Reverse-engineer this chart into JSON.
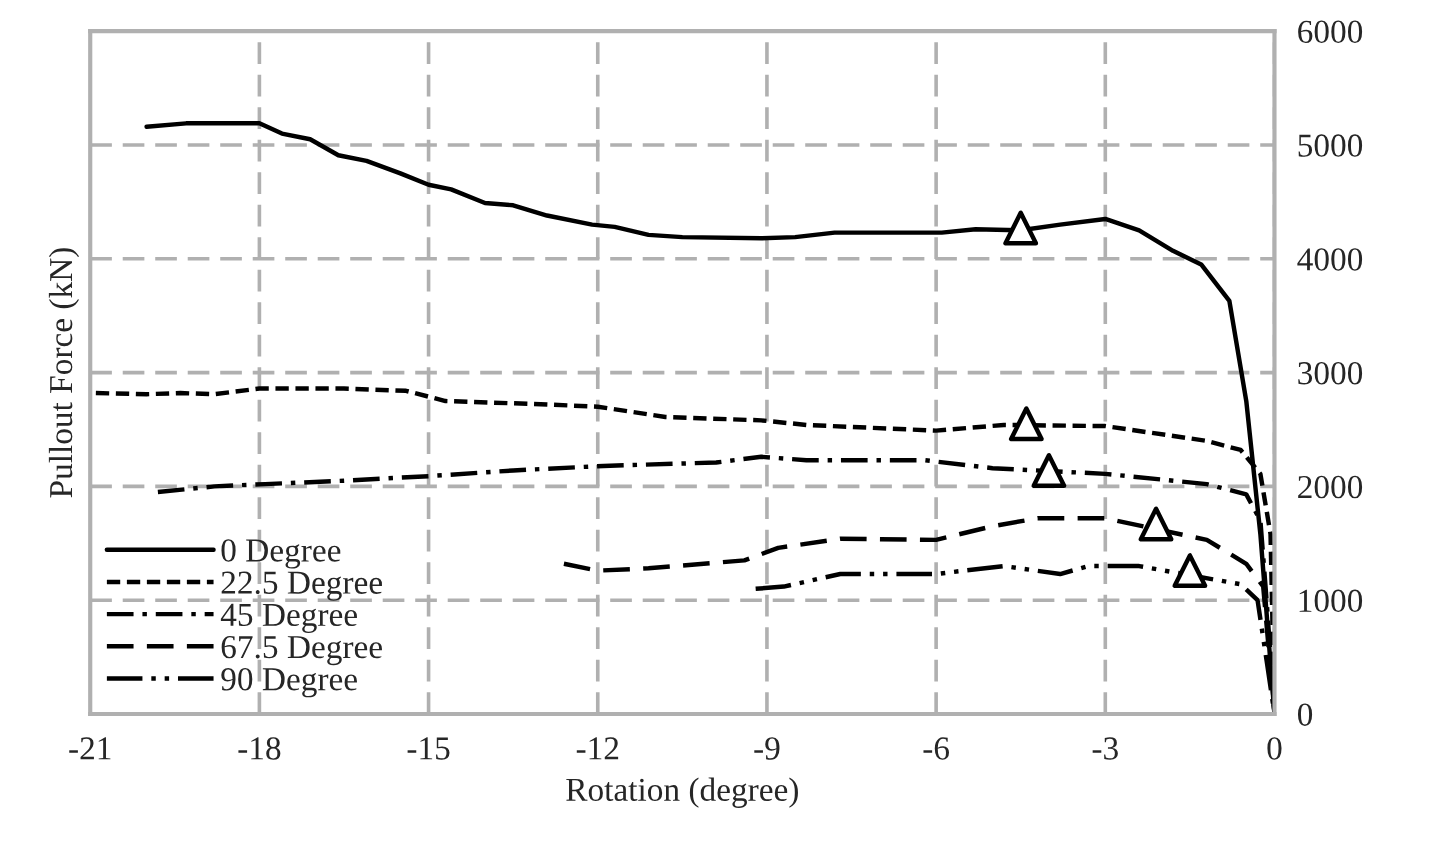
{
  "chart_data": {
    "type": "line",
    "xlabel": "Rotation (degree)",
    "ylabel": "Pullout Force (kN)",
    "xlim": [
      -21,
      0
    ],
    "xticks": [
      -21,
      -18,
      -15,
      -12,
      -9,
      -6,
      -3,
      0
    ],
    "ylim": [
      0,
      6000
    ],
    "yticks": [
      0,
      1000,
      2000,
      3000,
      4000,
      5000,
      6000
    ],
    "grid": true,
    "legend": "bottom left",
    "series": [
      {
        "name": "0 Degree",
        "color": "#000000",
        "line_style": "solid",
        "x": [
          -20.0,
          -19.3,
          -18.0,
          -17.6,
          -17.1,
          -16.6,
          -16.1,
          -15.5,
          -15.0,
          -14.6,
          -14.0,
          -13.5,
          -12.9,
          -12.1,
          -11.7,
          -11.1,
          -10.5,
          -9.1,
          -8.5,
          -7.8,
          -5.9,
          -5.3,
          -4.5,
          -3.8,
          -3.0,
          -2.4,
          -1.8,
          -1.3,
          -0.8,
          -0.5,
          -0.25,
          0
        ],
        "values": [
          5160,
          5190,
          5190,
          5100,
          5050,
          4910,
          4860,
          4750,
          4650,
          4610,
          4490,
          4470,
          4380,
          4300,
          4280,
          4210,
          4190,
          4180,
          4190,
          4230,
          4230,
          4260,
          4250,
          4300,
          4350,
          4250,
          4070,
          3950,
          3630,
          2750,
          1580,
          0
        ]
      },
      {
        "name": "22.5 Degree",
        "color": "#000000",
        "line_style": "dotted",
        "x": [
          -20.9,
          -20.0,
          -19.4,
          -18.8,
          -18.0,
          -16.5,
          -15.4,
          -14.7,
          -12.9,
          -12.0,
          -10.8,
          -9.1,
          -8.3,
          -6.0,
          -4.8,
          -3.0,
          -1.2,
          -0.6,
          -0.25,
          -0.07,
          0
        ],
        "values": [
          2820,
          2810,
          2820,
          2810,
          2860,
          2860,
          2840,
          2750,
          2720,
          2700,
          2610,
          2580,
          2540,
          2490,
          2540,
          2530,
          2400,
          2320,
          2110,
          1580,
          0
        ]
      },
      {
        "name": "45 Degree",
        "color": "#000000",
        "line_style": "dashdot",
        "x": [
          -19.8,
          -18.8,
          -17.9,
          -16.5,
          -15.0,
          -13.5,
          -11.9,
          -9.9,
          -9.1,
          -8.3,
          -6.2,
          -5.0,
          -3.0,
          -1.2,
          -0.5,
          -0.25,
          -0.14,
          0
        ],
        "values": [
          1950,
          2000,
          2020,
          2050,
          2090,
          2140,
          2180,
          2210,
          2260,
          2230,
          2230,
          2160,
          2110,
          2020,
          1930,
          1700,
          1000,
          0
        ]
      },
      {
        "name": "67.5 Degree",
        "color": "#000000",
        "line_style": "dashed",
        "x": [
          -12.6,
          -12.0,
          -11.1,
          -9.9,
          -9.4,
          -8.8,
          -7.7,
          -6.0,
          -5.0,
          -4.2,
          -3.0,
          -1.2,
          -0.5,
          -0.2,
          0
        ],
        "values": [
          1320,
          1260,
          1280,
          1330,
          1350,
          1460,
          1540,
          1530,
          1650,
          1720,
          1720,
          1530,
          1320,
          1120,
          0
        ]
      },
      {
        "name": "90 Degree",
        "color": "#000000",
        "line_style": "dashdotdot",
        "x": [
          -9.2,
          -8.7,
          -7.7,
          -6.0,
          -5.5,
          -4.8,
          -3.8,
          -3.3,
          -2.4,
          -0.6,
          -0.3,
          -0.14,
          0
        ],
        "values": [
          1100,
          1120,
          1230,
          1230,
          1260,
          1300,
          1230,
          1300,
          1300,
          1140,
          1000,
          470,
          0
        ]
      },
      {
        "type": "scatter",
        "marker": "triangle",
        "color": "#000000",
        "x": [
          -4.5,
          -4.4,
          -4.0,
          -2.1,
          -1.5
        ],
        "values": [
          4270,
          2550,
          2140,
          1670,
          1260
        ]
      }
    ]
  }
}
